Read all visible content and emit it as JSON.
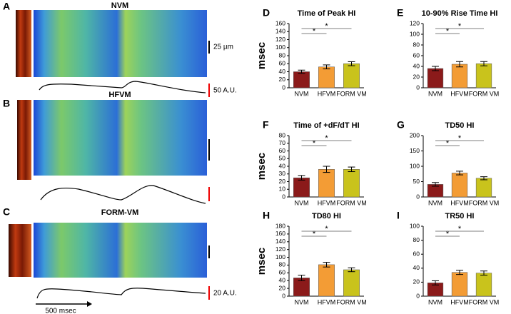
{
  "chart_data": [
    {
      "type": "bar",
      "panel": "D",
      "title": "Time of Peak HI",
      "ylabel": "msec",
      "categories": [
        "NVM",
        "HFVM",
        "FORM VM"
      ],
      "values": [
        40,
        52,
        60
      ],
      "errors": [
        4,
        5,
        5
      ],
      "colors": [
        "#8b1a1a",
        "#f39c35",
        "#c9c31c"
      ],
      "ylim": [
        0,
        160
      ],
      "yticks": [
        0,
        20,
        40,
        60,
        80,
        100,
        120,
        140,
        160
      ],
      "annotations": [
        {
          "text": "*",
          "from": 0,
          "to": 1
        },
        {
          "text": "*",
          "from": 0,
          "to": 2
        }
      ]
    },
    {
      "type": "bar",
      "panel": "E",
      "title": "10-90% Rise Time HI",
      "categories": [
        "NVM",
        "HFVM",
        "FORM VM"
      ],
      "values": [
        36,
        44,
        45
      ],
      "errors": [
        4,
        5,
        4
      ],
      "colors": [
        "#8b1a1a",
        "#f39c35",
        "#c9c31c"
      ],
      "ylim": [
        0,
        120
      ],
      "yticks": [
        0,
        20,
        40,
        60,
        80,
        100,
        120
      ],
      "annotations": [
        {
          "text": "*",
          "from": 0,
          "to": 1
        },
        {
          "text": "*",
          "from": 0,
          "to": 2
        }
      ]
    },
    {
      "type": "bar",
      "panel": "F",
      "title": "Time of +dF/dT HI",
      "ylabel": "msec",
      "categories": [
        "NVM",
        "HFVM",
        "FORM VM"
      ],
      "values": [
        25,
        36,
        36
      ],
      "errors": [
        3,
        4,
        3
      ],
      "colors": [
        "#8b1a1a",
        "#f39c35",
        "#c9c31c"
      ],
      "ylim": [
        0,
        80
      ],
      "yticks": [
        0,
        10,
        20,
        30,
        40,
        50,
        60,
        70,
        80
      ],
      "annotations": [
        {
          "text": "*",
          "from": 0,
          "to": 1
        },
        {
          "text": "*",
          "from": 0,
          "to": 2
        }
      ]
    },
    {
      "type": "bar",
      "panel": "G",
      "title": "TD50 HI",
      "categories": [
        "NVM",
        "HFVM",
        "FORM VM"
      ],
      "values": [
        41,
        78,
        61
      ],
      "errors": [
        6,
        6,
        5
      ],
      "colors": [
        "#8b1a1a",
        "#f39c35",
        "#c9c31c"
      ],
      "ylim": [
        0,
        200
      ],
      "yticks": [
        0,
        50,
        100,
        150,
        200
      ],
      "annotations": [
        {
          "text": "*",
          "from": 0,
          "to": 1
        },
        {
          "text": "*",
          "from": 0,
          "to": 2
        }
      ]
    },
    {
      "type": "bar",
      "panel": "H",
      "title": "TD80 HI",
      "ylabel": "msec",
      "categories": [
        "NVM",
        "HFVM",
        "FORM VM"
      ],
      "values": [
        47,
        81,
        68
      ],
      "errors": [
        7,
        6,
        5
      ],
      "colors": [
        "#8b1a1a",
        "#f39c35",
        "#c9c31c"
      ],
      "ylim": [
        0,
        180
      ],
      "yticks": [
        0,
        20,
        40,
        60,
        80,
        100,
        120,
        140,
        160,
        180
      ],
      "annotations": [
        {
          "text": "*",
          "from": 0,
          "to": 1
        },
        {
          "text": "*",
          "from": 0,
          "to": 2
        }
      ]
    },
    {
      "type": "bar",
      "panel": "I",
      "title": "TR50 HI",
      "categories": [
        "NVM",
        "HFVM",
        "FORM VM"
      ],
      "values": [
        19,
        34,
        33
      ],
      "errors": [
        3,
        3,
        3
      ],
      "colors": [
        "#8b1a1a",
        "#f39c35",
        "#c9c31c"
      ],
      "ylim": [
        0,
        100
      ],
      "yticks": [
        0,
        20,
        40,
        60,
        80,
        100
      ],
      "annotations": [
        {
          "text": "*",
          "from": 0,
          "to": 1
        },
        {
          "text": "*",
          "from": 0,
          "to": 2
        }
      ]
    }
  ],
  "image_panels": [
    {
      "letter": "A",
      "label": "NVM",
      "scale_bar": "25 µm",
      "amplitude_bar": "50 A.U."
    },
    {
      "letter": "B",
      "label": "HFVM"
    },
    {
      "letter": "C",
      "label": "FORM-VM",
      "amplitude_bar": "20 A.U."
    }
  ],
  "time_bar": "500 msec"
}
